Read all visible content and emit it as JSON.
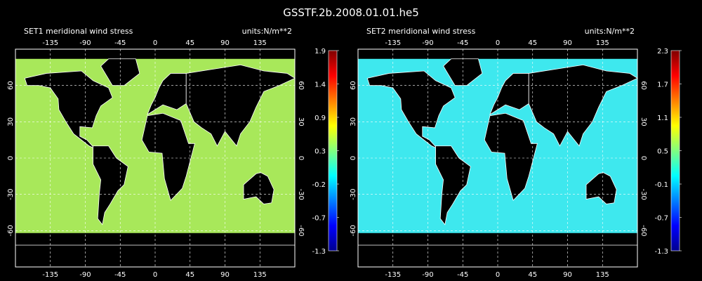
{
  "title": "GSSTF.2b.2008.01.01.he5",
  "chart_data": [
    {
      "type": "heatmap",
      "panel_title": "SET1 meridional wind stress",
      "units": "units:N/m**2",
      "x_ticks": [
        -135,
        -90,
        -45,
        0,
        45,
        90,
        135
      ],
      "y_ticks": [
        60,
        30,
        0,
        -30,
        -60
      ],
      "xlim": [
        -180,
        180
      ],
      "ylim": [
        -90,
        90
      ],
      "colorbar_ticks": [
        "1.9",
        "1.4",
        "0.9",
        "0.3",
        "-0.2",
        "-0.7",
        "-1.3"
      ],
      "colorbar_range": [
        -1.3,
        1.9
      ],
      "dominant_field_color": "#a8e85a",
      "colormap": [
        "#00008f",
        "#0000ff",
        "#00ffff",
        "#ffff00",
        "#ff0000",
        "#800000"
      ]
    },
    {
      "type": "heatmap",
      "panel_title": "SET2 meridional wind stress",
      "units": "units:N/m**2",
      "x_ticks": [
        -135,
        -90,
        -45,
        0,
        45,
        90,
        135
      ],
      "y_ticks": [
        60,
        30,
        0,
        -30,
        -60
      ],
      "xlim": [
        -180,
        180
      ],
      "ylim": [
        -90,
        90
      ],
      "colorbar_ticks": [
        "2.3",
        "1.7",
        "1.1",
        "0.5",
        "-0.1",
        "-0.7",
        "-1.3"
      ],
      "colorbar_range": [
        -1.3,
        2.3
      ],
      "dominant_field_color": "#3ee8ee",
      "colormap": [
        "#00008f",
        "#0000ff",
        "#00ffff",
        "#ffff00",
        "#ff0000",
        "#800000"
      ]
    }
  ]
}
